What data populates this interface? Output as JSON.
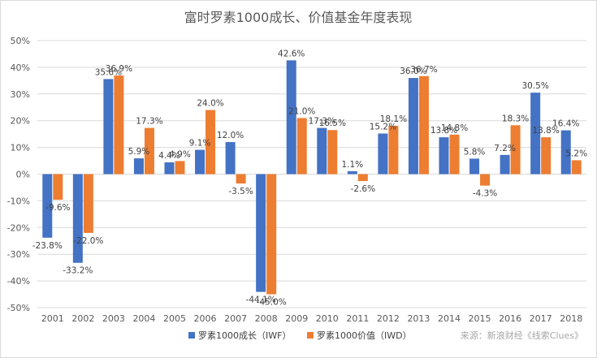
{
  "chart_data": {
    "type": "bar",
    "title": "富时罗素1000成长、价值基金年度表现",
    "categories": [
      "2001",
      "2002",
      "2003",
      "2004",
      "2005",
      "2006",
      "2007",
      "2008",
      "2009",
      "2010",
      "2011",
      "2012",
      "2013",
      "2014",
      "2015",
      "2016",
      "2017",
      "2018"
    ],
    "series": [
      {
        "name": "罗素1000成长（IWF）",
        "color": "#4472c4",
        "values": [
          -23.8,
          -33.2,
          35.6,
          5.9,
          4.4,
          9.1,
          12.0,
          -44.1,
          42.6,
          17.3,
          1.1,
          15.2,
          36.0,
          13.8,
          5.8,
          7.2,
          30.5,
          16.4
        ],
        "labels": [
          "-23.8%",
          "-33.2%",
          "35.6%",
          "5.9%",
          "4.4%",
          "9.1%",
          "12.0%",
          "-44.1%",
          "42.6%",
          "17.3%",
          "1.1%",
          "15.2%",
          "36.0%",
          "13.8%",
          "5.8%",
          "7.2%",
          "30.5%",
          "16.4%"
        ]
      },
      {
        "name": "罗素1000价值（IWD）",
        "color": "#ed7d31",
        "values": [
          -9.6,
          -22.0,
          36.9,
          17.3,
          4.9,
          24.0,
          -3.5,
          -45.0,
          21.0,
          16.5,
          -2.6,
          18.1,
          36.7,
          14.8,
          -4.3,
          18.3,
          13.8,
          5.2
        ],
        "labels": [
          "-9.6%",
          "-22.0%",
          "36.9%",
          "17.3%",
          "4.9%",
          "24.0%",
          "-3.5%",
          "-45.0%",
          "21.0%",
          "16.5%",
          "-2.6%",
          "18.1%",
          "36.7%",
          "14.8%",
          "-4.3%",
          "18.3%",
          "13.8%",
          "5.2%"
        ]
      }
    ],
    "ylim": [
      -50,
      50
    ],
    "yticks": [
      -50,
      -40,
      -30,
      -20,
      -10,
      0,
      10,
      20,
      30,
      40,
      50
    ],
    "ytick_labels": [
      "-50%",
      "-40%",
      "-30%",
      "-20%",
      "-10%",
      "0%",
      "10%",
      "20%",
      "30%",
      "40%",
      "50%"
    ],
    "grid": true,
    "legend_position": "bottom-center",
    "source": "来源：新浪财经《线索Clues》"
  }
}
